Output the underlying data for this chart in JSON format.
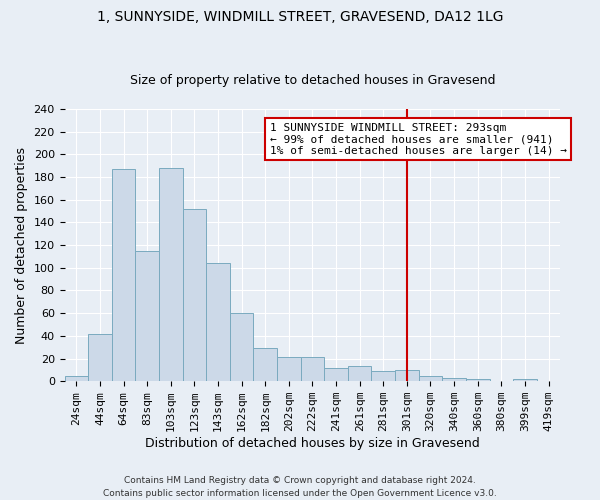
{
  "title1": "1, SUNNYSIDE, WINDMILL STREET, GRAVESEND, DA12 1LG",
  "title2": "Size of property relative to detached houses in Gravesend",
  "xlabel": "Distribution of detached houses by size in Gravesend",
  "ylabel": "Number of detached properties",
  "bar_labels": [
    "24sqm",
    "44sqm",
    "64sqm",
    "83sqm",
    "103sqm",
    "123sqm",
    "143sqm",
    "162sqm",
    "182sqm",
    "202sqm",
    "222sqm",
    "241sqm",
    "261sqm",
    "281sqm",
    "301sqm",
    "320sqm",
    "340sqm",
    "360sqm",
    "380sqm",
    "399sqm",
    "419sqm"
  ],
  "bar_values": [
    5,
    42,
    187,
    115,
    188,
    152,
    104,
    60,
    29,
    21,
    21,
    12,
    13,
    9,
    10,
    5,
    3,
    2,
    0,
    2,
    0
  ],
  "bar_color": "#ccd9e8",
  "bar_edge_color": "#7aaabf",
  "vline_x": 14.0,
  "vline_color": "#cc0000",
  "annotation_text": "1 SUNNYSIDE WINDMILL STREET: 293sqm\n← 99% of detached houses are smaller (941)\n1% of semi-detached houses are larger (14) →",
  "annotation_box_facecolor": "white",
  "annotation_box_edge_color": "#cc0000",
  "ylim": [
    0,
    240
  ],
  "yticks": [
    0,
    20,
    40,
    60,
    80,
    100,
    120,
    140,
    160,
    180,
    200,
    220,
    240
  ],
  "bg_color": "#e8eef5",
  "footer_line1": "Contains HM Land Registry data © Crown copyright and database right 2024.",
  "footer_line2": "Contains public sector information licensed under the Open Government Licence v3.0.",
  "title1_fontsize": 10,
  "title2_fontsize": 9,
  "xlabel_fontsize": 9,
  "ylabel_fontsize": 9,
  "tick_fontsize": 8,
  "annot_fontsize": 8
}
